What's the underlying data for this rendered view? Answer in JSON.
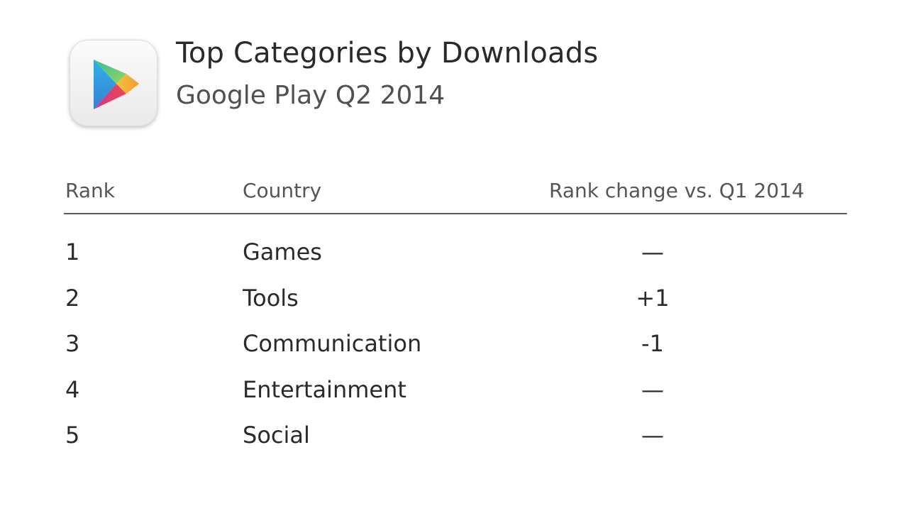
{
  "header": {
    "title": "Top Categories by Downloads",
    "subtitle": "Google Play Q2 2014",
    "icon": "google-play-icon"
  },
  "table": {
    "columns": {
      "rank": "Rank",
      "category": "Country",
      "change": "Rank change vs. Q1 2014"
    },
    "rows": [
      {
        "rank": "1",
        "category": "Games",
        "change": "—"
      },
      {
        "rank": "2",
        "category": "Tools",
        "change": "+1"
      },
      {
        "rank": "3",
        "category": "Communication",
        "change": "-1"
      },
      {
        "rank": "4",
        "category": "Entertainment",
        "change": "—"
      },
      {
        "rank": "5",
        "category": "Social",
        "change": "—"
      }
    ]
  },
  "colors": {
    "play_green": "#3bccff",
    "play_blue": "#48b7e8",
    "play_red": "#e2445b",
    "play_yellow": "#f4b43a"
  },
  "chart_data": {
    "type": "table",
    "title": "Top Categories by Downloads",
    "subtitle": "Google Play Q2 2014",
    "columns": [
      "Rank",
      "Country",
      "Rank change vs. Q1 2014"
    ],
    "rows": [
      [
        "1",
        "Games",
        "—"
      ],
      [
        "2",
        "Tools",
        "+1"
      ],
      [
        "3",
        "Communication",
        "-1"
      ],
      [
        "4",
        "Entertainment",
        "—"
      ],
      [
        "5",
        "Social",
        "—"
      ]
    ]
  }
}
